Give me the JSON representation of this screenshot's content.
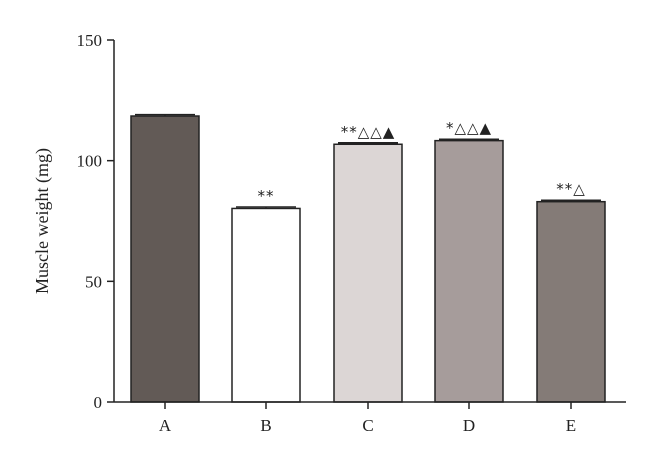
{
  "chart_data": {
    "type": "bar",
    "categories": [
      "A",
      "B",
      "C",
      "D",
      "E"
    ],
    "values": [
      118.5,
      80.2,
      106.8,
      108.3,
      83.0
    ],
    "errors": [
      0.6,
      0.6,
      0.6,
      0.6,
      0.6
    ],
    "colors": [
      "#625a56",
      "#ffffff",
      "#dcd6d5",
      "#a69c9b",
      "#847b77"
    ],
    "annotations": [
      "",
      "**",
      "**△△▲",
      "*△△▲",
      "**△"
    ],
    "title": "",
    "xlabel": "",
    "ylabel": "Muscle weight (mg)",
    "ylim": [
      0,
      150
    ],
    "yticks": [
      0,
      50,
      100,
      150
    ],
    "grid": false,
    "legend": "none"
  }
}
